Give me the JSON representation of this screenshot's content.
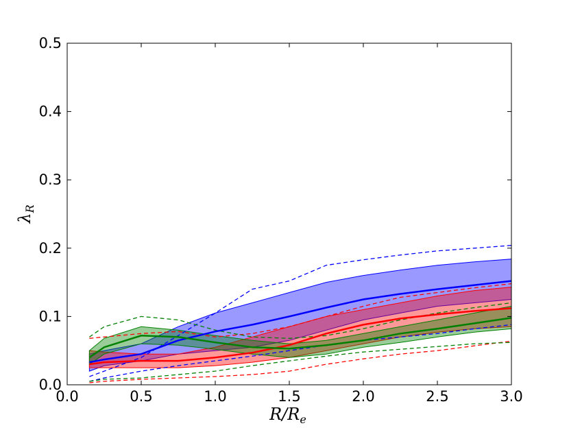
{
  "chart_data": {
    "type": "line",
    "xlabel": {
      "main": "R/R",
      "sub": "e"
    },
    "ylabel": {
      "main": "λ",
      "sub": "R"
    },
    "x": [
      0.15,
      0.25,
      0.5,
      0.75,
      1.0,
      1.25,
      1.5,
      1.75,
      2.0,
      2.25,
      2.5,
      2.75,
      3.0
    ],
    "xlim": [
      0,
      3
    ],
    "ylim": [
      0,
      0.5
    ],
    "xticks": [
      {
        "value": 0,
        "label": "0.0"
      },
      0.5,
      {
        "value": 1,
        "label": "1.0"
      },
      1.5,
      {
        "value": 2,
        "label": "2.0"
      },
      2.5,
      {
        "value": 3,
        "label": "3.0"
      }
    ],
    "yticks": [
      {
        "value": 0,
        "label": "0.0"
      },
      0.1,
      0.2,
      0.3,
      0.4,
      0.5
    ],
    "series": [
      {
        "color": "#0000ff",
        "values": [
          0.033,
          0.037,
          0.045,
          0.065,
          0.078,
          0.088,
          0.1,
          0.113,
          0.125,
          0.133,
          0.14,
          0.146,
          0.152
        ],
        "band_lower": [
          0.02,
          0.028,
          0.035,
          0.045,
          0.05,
          0.055,
          0.065,
          0.08,
          0.095,
          0.105,
          0.115,
          0.12,
          0.125
        ],
        "band_upper": [
          0.045,
          0.05,
          0.06,
          0.085,
          0.105,
          0.12,
          0.135,
          0.15,
          0.16,
          0.168,
          0.175,
          0.18,
          0.184
        ],
        "dashed_lower": [
          0.005,
          0.01,
          0.02,
          0.028,
          0.035,
          0.042,
          0.05,
          0.058,
          0.065,
          0.07,
          0.075,
          0.082,
          0.088
        ],
        "dashed_upper": [
          0.012,
          0.02,
          0.04,
          0.072,
          0.105,
          0.14,
          0.152,
          0.175,
          0.183,
          0.19,
          0.196,
          0.2,
          0.204
        ]
      },
      {
        "color": "#ff0000",
        "values": [
          0.03,
          0.033,
          0.035,
          0.035,
          0.04,
          0.047,
          0.058,
          0.075,
          0.088,
          0.097,
          0.103,
          0.108,
          0.112
        ],
        "band_lower": [
          0.025,
          0.025,
          0.025,
          0.025,
          0.028,
          0.033,
          0.04,
          0.05,
          0.06,
          0.07,
          0.077,
          0.082,
          0.085
        ],
        "band_upper": [
          0.05,
          0.048,
          0.045,
          0.045,
          0.055,
          0.07,
          0.085,
          0.1,
          0.11,
          0.12,
          0.13,
          0.138,
          0.143
        ],
        "dashed_lower": [
          0.003,
          0.005,
          0.008,
          0.01,
          0.012,
          0.015,
          0.02,
          0.03,
          0.038,
          0.045,
          0.05,
          0.057,
          0.064
        ],
        "dashed_upper": [
          0.068,
          0.07,
          0.075,
          0.078,
          0.07,
          0.075,
          0.085,
          0.1,
          0.115,
          0.128,
          0.135,
          0.142,
          0.148
        ]
      },
      {
        "color": "#008000",
        "values": [
          0.04,
          0.055,
          0.072,
          0.07,
          0.062,
          0.055,
          0.053,
          0.058,
          0.065,
          0.075,
          0.082,
          0.09,
          0.098
        ],
        "band_lower": [
          0.03,
          0.045,
          0.06,
          0.058,
          0.052,
          0.045,
          0.04,
          0.045,
          0.055,
          0.062,
          0.07,
          0.077,
          0.082
        ],
        "band_upper": [
          0.05,
          0.068,
          0.085,
          0.08,
          0.072,
          0.065,
          0.06,
          0.065,
          0.075,
          0.085,
          0.095,
          0.105,
          0.115
        ],
        "dashed_lower": [
          0.005,
          0.008,
          0.01,
          0.015,
          0.02,
          0.028,
          0.035,
          0.042,
          0.048,
          0.052,
          0.056,
          0.06,
          0.062
        ],
        "dashed_upper": [
          0.07,
          0.085,
          0.1,
          0.095,
          0.08,
          0.07,
          0.068,
          0.072,
          0.082,
          0.095,
          0.105,
          0.113,
          0.12
        ]
      }
    ]
  }
}
